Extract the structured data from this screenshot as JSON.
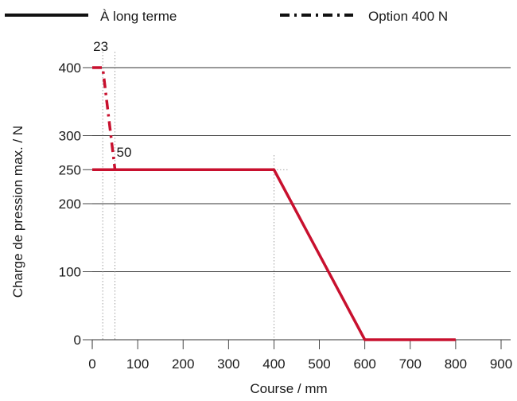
{
  "chart_data": {
    "type": "line",
    "title": "",
    "xlabel": "Course / mm",
    "ylabel": "Charge de pression max. / N",
    "xlim": [
      0,
      900
    ],
    "ylim": [
      0,
      400
    ],
    "x_ticks": [
      "0",
      "100",
      "200",
      "300",
      "400",
      "500",
      "600",
      "700",
      "800",
      "900"
    ],
    "y_ticks": [
      "0",
      "100",
      "200",
      "250",
      "300",
      "400"
    ],
    "grid": "horizontal",
    "legend_position": "top",
    "series": [
      {
        "name": "À long terme",
        "style": "solid",
        "color": "#c8102e",
        "x": [
          0,
          400,
          600,
          800
        ],
        "y": [
          250,
          250,
          0,
          0
        ]
      },
      {
        "name": "Option 400 N",
        "style": "dash-dot",
        "color": "#c8102e",
        "x": [
          0,
          23,
          50
        ],
        "y": [
          400,
          400,
          250
        ]
      }
    ],
    "annotations": [
      {
        "text": "23",
        "x": 23,
        "y": 400
      },
      {
        "text": "50",
        "x": 50,
        "y": 290
      }
    ],
    "reference_lines": [
      {
        "axis": "x",
        "value": 23
      },
      {
        "axis": "x",
        "value": 50
      },
      {
        "axis": "x",
        "value": 400
      },
      {
        "axis": "y",
        "value": 250
      }
    ]
  }
}
